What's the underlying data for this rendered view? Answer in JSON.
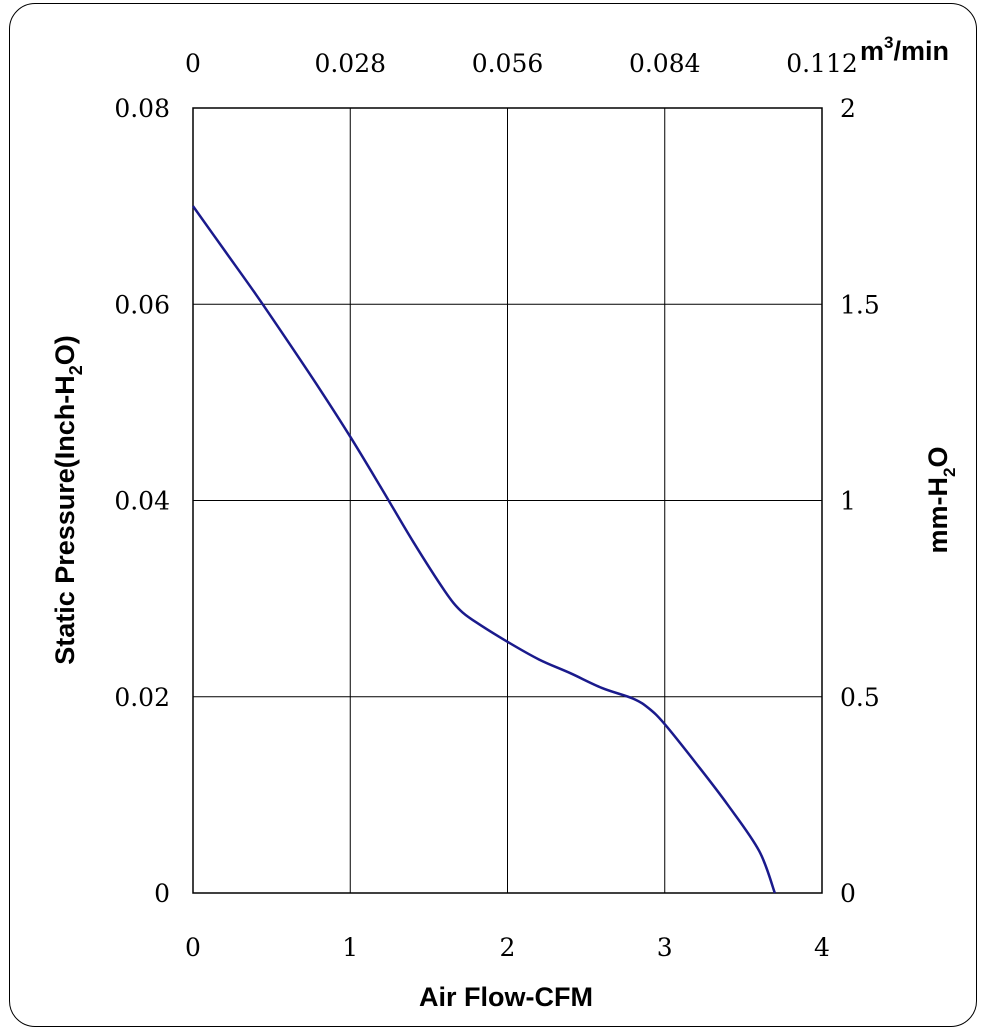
{
  "chart_data": {
    "type": "line",
    "title": "",
    "xlabel": "Air Flow-CFM",
    "ylabel": {
      "prefix": "Static Pressure(Inch-H",
      "sub": "2",
      "suffix": "O)"
    },
    "y2label": {
      "prefix": "mm-H",
      "sub": "2",
      "suffix": "O"
    },
    "x2unit": {
      "prefix": "m",
      "sup": "3",
      "suffix": "/min"
    },
    "xlim": [
      0,
      4
    ],
    "ylim": [
      0,
      0.08
    ],
    "y2lim": [
      0,
      2
    ],
    "x2lim": [
      0,
      0.112
    ],
    "grid": true,
    "x_ticks": [
      "0",
      "1",
      "2",
      "3",
      "4"
    ],
    "y_ticks": [
      "0",
      "0.02",
      "0.04",
      "0.06",
      "0.08"
    ],
    "x2_ticks": [
      "0",
      "0.028",
      "0.056",
      "0.084",
      "0.112"
    ],
    "y2_ticks": [
      "0",
      "0.5",
      "1",
      "1.5",
      "2"
    ],
    "series": [
      {
        "color": "#1a1a8c",
        "x": [
          0,
          0.2,
          0.4,
          0.6,
          0.8,
          1.0,
          1.2,
          1.4,
          1.6,
          1.7,
          1.8,
          2.0,
          2.2,
          2.4,
          2.6,
          2.8,
          2.9,
          3.0,
          3.2,
          3.4,
          3.6,
          3.7
        ],
        "y": [
          0.07,
          0.0655,
          0.061,
          0.0563,
          0.0515,
          0.0465,
          0.0412,
          0.0358,
          0.0308,
          0.0288,
          0.0276,
          0.0256,
          0.0238,
          0.0224,
          0.0209,
          0.0198,
          0.0188,
          0.0172,
          0.0132,
          0.009,
          0.0043,
          0.0
        ]
      }
    ]
  }
}
